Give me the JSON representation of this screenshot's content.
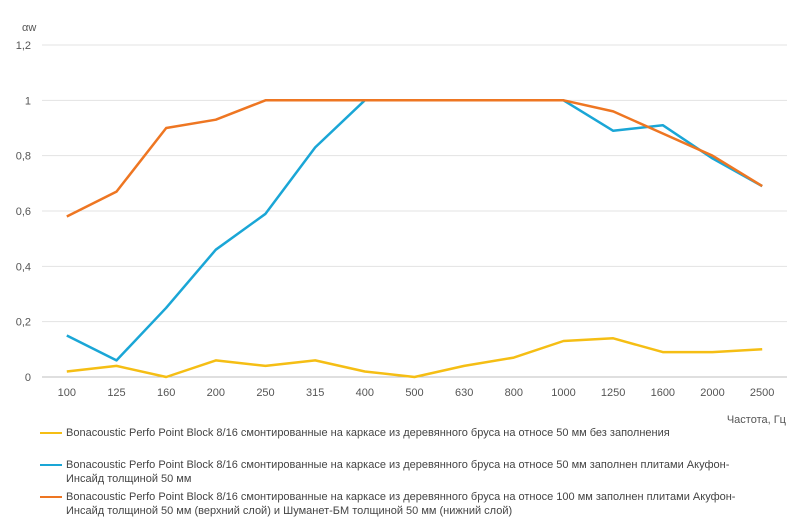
{
  "chart_data": {
    "type": "line",
    "ylabel": "αw",
    "xlabel": "Частота, Гц",
    "categories": [
      "100",
      "125",
      "160",
      "200",
      "250",
      "315",
      "400",
      "500",
      "630",
      "800",
      "1000",
      "1250",
      "1600",
      "2000",
      "2500"
    ],
    "ylim": [
      0,
      1.2
    ],
    "yticks": [
      "0",
      "0,2",
      "0,4",
      "0,6",
      "0,8",
      "1",
      "1,2"
    ],
    "ytick_values": [
      0,
      0.2,
      0.4,
      0.6,
      0.8,
      1.0,
      1.2
    ],
    "grid": true,
    "legend_position": "bottom",
    "series": [
      {
        "name": "Bonacoustic Perfo Point Block 8/16 смонтированные на каркасе из деревянного бруса на относе 50 мм без заполнения",
        "color": "#F5BE14",
        "values": [
          0.02,
          0.04,
          0.0,
          0.06,
          0.04,
          0.06,
          0.02,
          0.0,
          0.04,
          0.07,
          0.13,
          0.14,
          0.09,
          0.09,
          0.1
        ]
      },
      {
        "name": "Bonacoustic Perfo Point Block 8/16 смонтированные на каркасе из деревянного бруса на относе 50 мм заполнен  плитами Акуфон-Инсайд толщиной 50 мм",
        "color": "#1AA6D6",
        "values": [
          0.15,
          0.06,
          0.25,
          0.46,
          0.59,
          0.83,
          1.0,
          1.0,
          1.0,
          1.0,
          1.0,
          0.89,
          0.91,
          0.79,
          0.69
        ]
      },
      {
        "name": "Bonacoustic Perfo Point Block 8/16 смонтированные на каркасе из деревянного бруса на относе 100 мм заполнен  плитами Акуфон-Инсайд толщиной 50 мм (верхний слой) и Шуманет-БМ толщиной 50   мм (нижний слой)",
        "color": "#EE7622",
        "values": [
          0.58,
          0.67,
          0.9,
          0.93,
          1.0,
          1.0,
          1.0,
          1.0,
          1.0,
          1.0,
          1.0,
          0.96,
          0.88,
          0.8,
          0.69
        ]
      }
    ]
  }
}
